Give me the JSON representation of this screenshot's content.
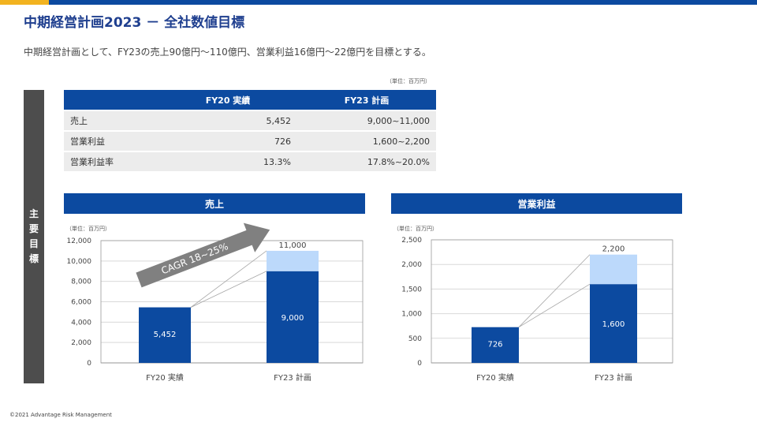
{
  "header": {
    "title": "中期経営計画2023 － 全社数値目標",
    "subtitle": "中期経営計画として、FY23の売上90億円～110億円、営業利益16億円～22億円を目標とする。"
  },
  "side_label": "主要目標",
  "table": {
    "unit": "（単位：百万円）",
    "columns": [
      "FY20 実績",
      "FY23 計画"
    ],
    "rows": [
      {
        "label": "売上",
        "fy20": "5,452",
        "fy23": "9,000~11,000"
      },
      {
        "label": "営業利益",
        "fy20": "726",
        "fy23": "1,600~2,200"
      },
      {
        "label": "営業利益率",
        "fy20": "13.3%",
        "fy23": "17.8%~20.0%"
      }
    ]
  },
  "colors": {
    "primary": "#0c4aa0",
    "light": "#bcd9fb",
    "accent": "#f2b320",
    "arrow": "#808080"
  },
  "chart_data": [
    {
      "type": "bar",
      "title": "売上",
      "unit": "（単位：百万円）",
      "categories": [
        "FY20 実績",
        "FY23 計画"
      ],
      "series": [
        {
          "values": [
            5452,
            9000
          ],
          "labels": [
            "5,452",
            "9,000"
          ]
        },
        {
          "values": [
            0,
            2000
          ],
          "labels": [
            "",
            "11,000"
          ]
        }
      ],
      "ylim": [
        0,
        12000
      ],
      "yticks": [
        0,
        2000,
        4000,
        6000,
        8000,
        10000,
        12000
      ],
      "ytick_labels": [
        "0",
        "2,000",
        "4,000",
        "6,000",
        "8,000",
        "10,000",
        "12,000"
      ],
      "annotation": "CAGR 18~25%",
      "grid": true
    },
    {
      "type": "bar",
      "title": "営業利益",
      "unit": "（単位：百万円）",
      "categories": [
        "FY20 実績",
        "FY23 計画"
      ],
      "series": [
        {
          "values": [
            726,
            1600
          ],
          "labels": [
            "726",
            "1,600"
          ]
        },
        {
          "values": [
            0,
            600
          ],
          "labels": [
            "",
            "2,200"
          ]
        }
      ],
      "ylim": [
        0,
        2500
      ],
      "yticks": [
        0,
        500,
        1000,
        1500,
        2000,
        2500
      ],
      "ytick_labels": [
        "0",
        "500",
        "1,000",
        "1,500",
        "2,000",
        "2,500"
      ],
      "grid": true
    }
  ],
  "footer": "©2021 Advantage Risk Management"
}
